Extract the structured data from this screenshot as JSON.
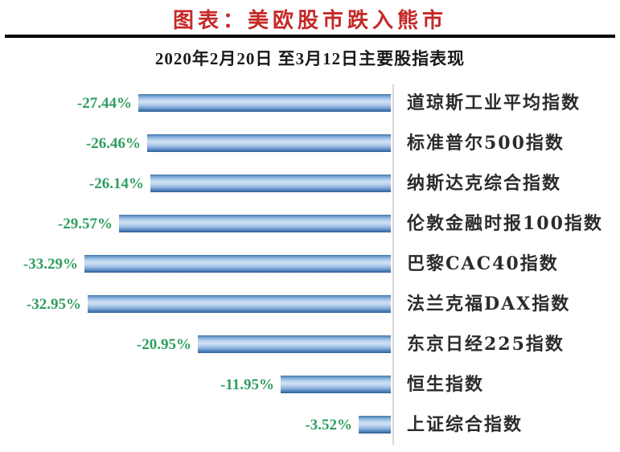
{
  "header": {
    "title": "图表：美欧股市跌入熊市",
    "subtitle": "2020年2月20日 至3月12日主要股指表现"
  },
  "colors": {
    "title_color": "#c62828",
    "value_label_color": "#2e9e60",
    "bar_base_color": "#4f81bd",
    "axis_line_color": "#d8d8d8",
    "rule_color": "#000000"
  },
  "chart_data": {
    "type": "bar",
    "orientation": "horizontal",
    "title": "图表：美欧股市跌入熊市",
    "subtitle": "2020年2月20日 至3月12日主要股指表现",
    "xlabel": "",
    "ylabel": "",
    "xlim": [
      -35,
      0
    ],
    "grid": false,
    "legend": "none",
    "categories": [
      "道琼斯工业平均指数",
      "标准普尔500指数",
      "纳斯达克综合指数",
      "伦敦金融时报100指数",
      "巴黎CAC40指数",
      "法兰克福DAX指数",
      "东京日经225指数",
      "恒生指数",
      "上证综合指数"
    ],
    "values": [
      -27.44,
      -26.46,
      -26.14,
      -29.57,
      -33.29,
      -32.95,
      -20.95,
      -11.95,
      -3.52
    ],
    "value_labels": [
      "-27.44%",
      "-26.46%",
      "-26.14%",
      "-29.57%",
      "-33.29%",
      "-32.95%",
      "-20.95%",
      "-11.95%",
      "-3.52%"
    ]
  }
}
